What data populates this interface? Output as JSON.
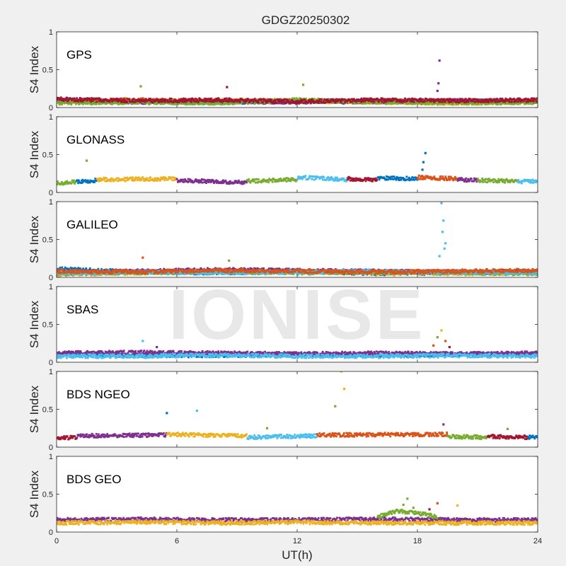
{
  "chart_data": {
    "type": "scatter",
    "title": "GDGZ20250302",
    "xlabel": "UT(h)",
    "ylabel": "S4 Index",
    "xlim": [
      0,
      24
    ],
    "ylim": [
      0,
      1
    ],
    "x_ticks": [
      0,
      6,
      12,
      18,
      24
    ],
    "x_tick_labels": [
      "0",
      "6",
      "12",
      "18",
      "24"
    ],
    "y_ticks": [
      0,
      0.5,
      1
    ],
    "y_tick_labels": [
      "0",
      "0.5",
      "1"
    ],
    "grid": false,
    "palette": [
      "#0072BD",
      "#D95319",
      "#EDB120",
      "#7E2F8E",
      "#77AC30",
      "#4DBEEE",
      "#A2142F"
    ],
    "watermark": "IONISE",
    "panels": [
      {
        "label": "GPS",
        "series": [
          {
            "color": "#0072BD",
            "x": [
              0,
              4,
              8,
              12,
              16,
              20,
              24
            ],
            "y": [
              0.1,
              0.08,
              0.07,
              0.08,
              0.09,
              0.08,
              0.09
            ]
          },
          {
            "color": "#D95319",
            "x": [
              0,
              4,
              8,
              12,
              16,
              20,
              24
            ],
            "y": [
              0.09,
              0.1,
              0.08,
              0.09,
              0.08,
              0.09,
              0.08
            ]
          },
          {
            "color": "#EDB120",
            "x": [
              0,
              4,
              8,
              12,
              16,
              20,
              24
            ],
            "y": [
              0.07,
              0.08,
              0.09,
              0.08,
              0.07,
              0.06,
              0.07
            ]
          },
          {
            "color": "#7E2F8E",
            "x": [
              0,
              4,
              8,
              12,
              16,
              20,
              24
            ],
            "y": [
              0.08,
              0.07,
              0.08,
              0.07,
              0.08,
              0.09,
              0.08
            ]
          },
          {
            "color": "#77AC30",
            "x": [
              0,
              4,
              8,
              12,
              16,
              20,
              24
            ],
            "y": [
              0.06,
              0.07,
              0.06,
              0.1,
              0.07,
              0.06,
              0.07
            ]
          },
          {
            "color": "#A2142F",
            "x": [
              0,
              4,
              8,
              12,
              16,
              20,
              24
            ],
            "y": [
              0.11,
              0.09,
              0.1,
              0.08,
              0.1,
              0.09,
              0.1
            ]
          }
        ],
        "outliers": [
          {
            "x": 4.2,
            "y": 0.28,
            "color": "#77AC30"
          },
          {
            "x": 8.5,
            "y": 0.27,
            "color": "#A2142F"
          },
          {
            "x": 12.3,
            "y": 0.3,
            "color": "#77AC30"
          },
          {
            "x": 19.1,
            "y": 0.62,
            "color": "#7E2F8E"
          },
          {
            "x": 19.05,
            "y": 0.32,
            "color": "#7E2F8E"
          },
          {
            "x": 19.0,
            "y": 0.22,
            "color": "#7E2F8E"
          }
        ]
      },
      {
        "label": "GLONASS",
        "series": [
          {
            "color": "#77AC30",
            "x": [
              0,
              1
            ],
            "y": [
              0.12,
              0.14
            ]
          },
          {
            "color": "#0072BD",
            "x": [
              1,
              2
            ],
            "y": [
              0.14,
              0.16
            ]
          },
          {
            "color": "#EDB120",
            "x": [
              2,
              6
            ],
            "y": [
              0.17,
              0.18
            ]
          },
          {
            "color": "#7E2F8E",
            "x": [
              6,
              9.5
            ],
            "y": [
              0.16,
              0.13
            ]
          },
          {
            "color": "#77AC30",
            "x": [
              9.5,
              12
            ],
            "y": [
              0.15,
              0.17
            ]
          },
          {
            "color": "#4DBEEE",
            "x": [
              12,
              14.5
            ],
            "y": [
              0.2,
              0.17
            ]
          },
          {
            "color": "#A2142F",
            "x": [
              14.5,
              16
            ],
            "y": [
              0.18,
              0.17
            ]
          },
          {
            "color": "#0072BD",
            "x": [
              16,
              18
            ],
            "y": [
              0.19,
              0.18
            ]
          },
          {
            "color": "#D95319",
            "x": [
              18,
              20
            ],
            "y": [
              0.2,
              0.18
            ]
          },
          {
            "color": "#7E2F8E",
            "x": [
              20,
              21
            ],
            "y": [
              0.17,
              0.16
            ]
          },
          {
            "color": "#77AC30",
            "x": [
              21,
              23
            ],
            "y": [
              0.16,
              0.15
            ]
          },
          {
            "color": "#4DBEEE",
            "x": [
              23,
              24
            ],
            "y": [
              0.14,
              0.15
            ]
          }
        ],
        "outliers": [
          {
            "x": 1.5,
            "y": 0.42,
            "color": "#77AC30"
          },
          {
            "x": 18.4,
            "y": 0.52,
            "color": "#0072BD"
          },
          {
            "x": 18.3,
            "y": 0.4,
            "color": "#0072BD"
          },
          {
            "x": 18.25,
            "y": 0.3,
            "color": "#0072BD"
          }
        ]
      },
      {
        "label": "GALILEO",
        "series": [
          {
            "color": "#0072BD",
            "x": [
              0,
              4,
              8,
              12,
              16,
              20,
              24
            ],
            "y": [
              0.11,
              0.07,
              0.06,
              0.08,
              0.05,
              0.06,
              0.07
            ]
          },
          {
            "color": "#EDB120",
            "x": [
              0,
              4,
              8,
              12,
              16,
              20,
              24
            ],
            "y": [
              0.04,
              0.06,
              0.08,
              0.07,
              0.06,
              0.05,
              0.06
            ]
          },
          {
            "color": "#7E2F8E",
            "x": [
              0,
              4,
              8,
              12,
              16,
              20,
              24
            ],
            "y": [
              0.07,
              0.08,
              0.1,
              0.09,
              0.08,
              0.07,
              0.08
            ]
          },
          {
            "color": "#77AC30",
            "x": [
              0,
              4,
              8,
              12,
              16,
              20,
              24
            ],
            "y": [
              0.05,
              0.06,
              0.07,
              0.06,
              0.07,
              0.06,
              0.05
            ]
          },
          {
            "color": "#4DBEEE",
            "x": [
              0,
              4,
              8,
              12,
              16,
              20,
              24
            ],
            "y": [
              0.06,
              0.07,
              0.06,
              0.07,
              0.08,
              0.07,
              0.06
            ]
          },
          {
            "color": "#D95319",
            "x": [
              0,
              4,
              8,
              12,
              16,
              20,
              24
            ],
            "y": [
              0.08,
              0.07,
              0.09,
              0.08,
              0.07,
              0.08,
              0.09
            ]
          }
        ],
        "outliers": [
          {
            "x": 4.3,
            "y": 0.26,
            "color": "#D95319"
          },
          {
            "x": 8.6,
            "y": 0.22,
            "color": "#77AC30"
          },
          {
            "x": 19.2,
            "y": 0.98,
            "color": "#4DBEEE"
          },
          {
            "x": 19.3,
            "y": 0.75,
            "color": "#4DBEEE"
          },
          {
            "x": 19.25,
            "y": 0.6,
            "color": "#4DBEEE"
          },
          {
            "x": 19.4,
            "y": 0.45,
            "color": "#4DBEEE"
          },
          {
            "x": 19.35,
            "y": 0.38,
            "color": "#4DBEEE"
          },
          {
            "x": 19.1,
            "y": 0.28,
            "color": "#4DBEEE"
          }
        ]
      },
      {
        "label": "SBAS",
        "series": [
          {
            "color": "#0072BD",
            "x": [
              0,
              4,
              8,
              12,
              16,
              20,
              24
            ],
            "y": [
              0.1,
              0.09,
              0.09,
              0.1,
              0.09,
              0.1,
              0.1
            ]
          },
          {
            "color": "#7E2F8E",
            "x": [
              0,
              4,
              8,
              12,
              16,
              20,
              24
            ],
            "y": [
              0.12,
              0.13,
              0.12,
              0.11,
              0.12,
              0.11,
              0.12
            ]
          },
          {
            "color": "#4DBEEE",
            "x": [
              0,
              4,
              8,
              12,
              16,
              20,
              24
            ],
            "y": [
              0.08,
              0.08,
              0.09,
              0.08,
              0.08,
              0.09,
              0.08
            ]
          }
        ],
        "outliers": [
          {
            "x": 4.3,
            "y": 0.28,
            "color": "#4DBEEE"
          },
          {
            "x": 5.0,
            "y": 0.2,
            "color": "#7E2F8E"
          },
          {
            "x": 19.2,
            "y": 0.42,
            "color": "#EDB120"
          },
          {
            "x": 19.0,
            "y": 0.33,
            "color": "#77AC30"
          },
          {
            "x": 19.4,
            "y": 0.28,
            "color": "#D95319"
          },
          {
            "x": 18.8,
            "y": 0.22,
            "color": "#D95319"
          },
          {
            "x": 19.6,
            "y": 0.2,
            "color": "#A2142F"
          }
        ]
      },
      {
        "label": "BDS NGEO",
        "series": [
          {
            "color": "#A2142F",
            "x": [
              0,
              1
            ],
            "y": [
              0.12,
              0.13
            ]
          },
          {
            "color": "#7E2F8E",
            "x": [
              1,
              5.5
            ],
            "y": [
              0.15,
              0.16
            ]
          },
          {
            "color": "#EDB120",
            "x": [
              5.5,
              9.5
            ],
            "y": [
              0.17,
              0.15
            ]
          },
          {
            "color": "#4DBEEE",
            "x": [
              9.5,
              13
            ],
            "y": [
              0.13,
              0.15
            ]
          },
          {
            "color": "#D95319",
            "x": [
              13,
              19.5
            ],
            "y": [
              0.16,
              0.17
            ]
          },
          {
            "color": "#77AC30",
            "x": [
              19.5,
              21.5
            ],
            "y": [
              0.14,
              0.13
            ]
          },
          {
            "color": "#A2142F",
            "x": [
              21.5,
              23.5
            ],
            "y": [
              0.14,
              0.13
            ]
          },
          {
            "color": "#0072BD",
            "x": [
              23.5,
              24
            ],
            "y": [
              0.13,
              0.14
            ]
          }
        ],
        "outliers": [
          {
            "x": 5.5,
            "y": 0.45,
            "color": "#0072BD"
          },
          {
            "x": 7.0,
            "y": 0.48,
            "color": "#4DBEEE"
          },
          {
            "x": 14.2,
            "y": 1.0,
            "color": "#EDB120"
          },
          {
            "x": 14.35,
            "y": 0.77,
            "color": "#EDB120"
          },
          {
            "x": 13.9,
            "y": 0.54,
            "color": "#77AC30"
          },
          {
            "x": 10.5,
            "y": 0.25,
            "color": "#77AC30"
          },
          {
            "x": 19.3,
            "y": 0.3,
            "color": "#7E2F8E"
          },
          {
            "x": 22.5,
            "y": 0.24,
            "color": "#77AC30"
          }
        ]
      },
      {
        "label": "BDS GEO",
        "series": [
          {
            "color": "#7E2F8E",
            "x": [
              0,
              4,
              8,
              12,
              16,
              20,
              24
            ],
            "y": [
              0.16,
              0.17,
              0.16,
              0.16,
              0.17,
              0.16,
              0.16
            ]
          },
          {
            "color": "#EDB120",
            "x": [
              0,
              4,
              8,
              12,
              16,
              20,
              24
            ],
            "y": [
              0.12,
              0.13,
              0.12,
              0.13,
              0.12,
              0.12,
              0.12
            ]
          },
          {
            "color": "#77AC30",
            "x": [
              16,
              17,
              18,
              19
            ],
            "y": [
              0.2,
              0.28,
              0.25,
              0.2
            ]
          }
        ],
        "outliers": [
          {
            "x": 17.5,
            "y": 0.44,
            "color": "#77AC30"
          },
          {
            "x": 17.3,
            "y": 0.36,
            "color": "#77AC30"
          },
          {
            "x": 17.8,
            "y": 0.32,
            "color": "#77AC30"
          },
          {
            "x": 19.0,
            "y": 0.38,
            "color": "#D95319"
          },
          {
            "x": 20.0,
            "y": 0.35,
            "color": "#EDB120"
          },
          {
            "x": 18.6,
            "y": 0.3,
            "color": "#A2142F"
          }
        ]
      }
    ]
  }
}
